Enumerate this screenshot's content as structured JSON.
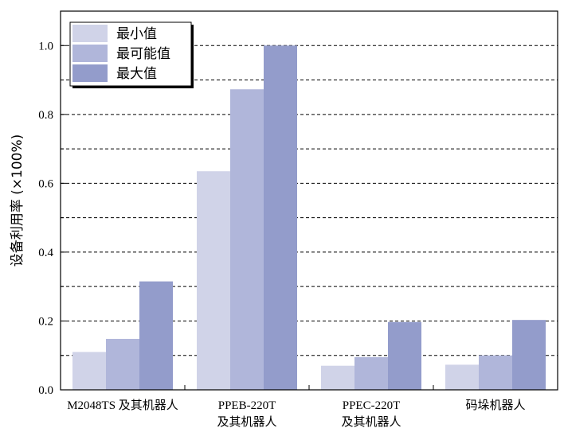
{
  "chart_data": {
    "type": "bar",
    "title": "",
    "ylabel": "设备利用率 (×100%)",
    "xlabel": "",
    "categories": [
      [
        "M2048TS 及其机器人"
      ],
      [
        "PPEB-220T",
        "及其机器人"
      ],
      [
        "PPEC-220T",
        "及其机器人"
      ],
      [
        "码垛机器人"
      ]
    ],
    "series": [
      {
        "name": "最小值",
        "color": "#d0d3e8",
        "values": [
          0.11,
          0.635,
          0.07,
          0.073
        ]
      },
      {
        "name": "最可能值",
        "color": "#b0b6da",
        "values": [
          0.148,
          0.873,
          0.095,
          0.1
        ]
      },
      {
        "name": "最大值",
        "color": "#939ccb",
        "values": [
          0.315,
          1.0,
          0.197,
          0.203
        ]
      }
    ],
    "ylim": [
      0,
      1.1
    ],
    "yticks": [
      "0.0",
      "0.2",
      "0.4",
      "0.6",
      "0.8",
      "1.0"
    ],
    "grid": "horizontal-dashed",
    "legend_position": "top-left"
  }
}
